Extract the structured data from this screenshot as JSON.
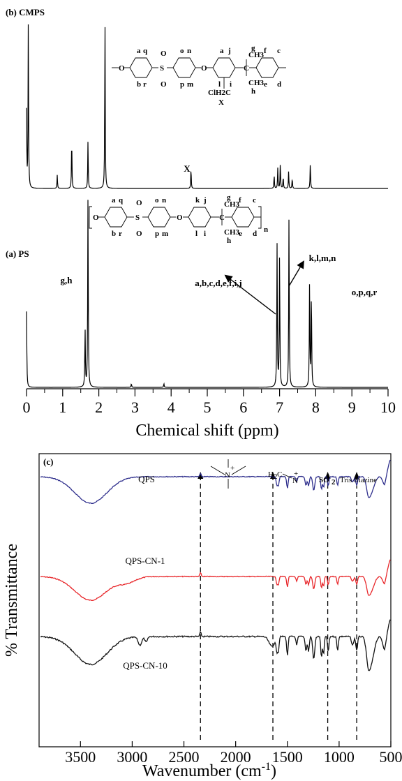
{
  "chart_data": [
    {
      "type": "line",
      "panel": "nmr",
      "xlabel": "Chemical shift (ppm)",
      "xlim": [
        0,
        10
      ],
      "x_ticks": [
        "0",
        "1",
        "2",
        "3",
        "4",
        "5",
        "6",
        "7",
        "8",
        "9",
        "10"
      ],
      "annotations": [
        "X",
        "g,h",
        "a,b,c,d,e,f,i,j",
        "k,l,m,n",
        "o,p,q,r"
      ],
      "series": [
        {
          "name": "(b) CMPS",
          "peaks": [
            {
              "ppm": 0.0,
              "height": 0.45
            },
            {
              "ppm": 0.05,
              "height": 1.0
            },
            {
              "ppm": 0.85,
              "height": 0.08
            },
            {
              "ppm": 1.25,
              "height": 0.3
            },
            {
              "ppm": 1.7,
              "height": 0.28
            },
            {
              "ppm": 2.17,
              "height": 1.0
            },
            {
              "ppm": 4.55,
              "height": 0.12
            },
            {
              "ppm": 6.85,
              "height": 0.08
            },
            {
              "ppm": 6.95,
              "height": 0.12
            },
            {
              "ppm": 7.02,
              "height": 0.15
            },
            {
              "ppm": 7.1,
              "height": 0.07
            },
            {
              "ppm": 7.25,
              "height": 0.1
            },
            {
              "ppm": 7.35,
              "height": 0.06
            },
            {
              "ppm": 7.85,
              "height": 0.15
            }
          ]
        },
        {
          "name": "(a) PS",
          "peaks": [
            {
              "ppm": 0.0,
              "height": 0.4
            },
            {
              "ppm": 1.62,
              "height": 0.3
            },
            {
              "ppm": 1.7,
              "height": 1.0
            },
            {
              "ppm": 2.9,
              "height": 0.02
            },
            {
              "ppm": 3.8,
              "height": 0.02
            },
            {
              "ppm": 6.93,
              "height": 0.75
            },
            {
              "ppm": 7.0,
              "height": 0.7
            },
            {
              "ppm": 7.26,
              "height": 0.9
            },
            {
              "ppm": 7.83,
              "height": 0.55
            },
            {
              "ppm": 7.88,
              "height": 0.5
            }
          ]
        }
      ],
      "structures": {
        "cmps": {
          "ring_letters": [
            "a",
            "q",
            "b",
            "r",
            "o",
            "n",
            "p",
            "m",
            "a",
            "j",
            "l",
            "i",
            "g",
            "f",
            "c",
            "h",
            "e",
            "d"
          ],
          "groups": [
            "S",
            "O",
            "O",
            "O",
            "ClH2C",
            "X",
            "CH3",
            "CH3",
            "C"
          ]
        },
        "ps": {
          "ring_letters": [
            "a",
            "q",
            "b",
            "r",
            "o",
            "n",
            "p",
            "m",
            "k",
            "j",
            "l",
            "i",
            "g",
            "f",
            "c",
            "h",
            "e",
            "d"
          ],
          "groups": [
            "O",
            "S",
            "O",
            "O",
            "O",
            "CH3",
            "CH3",
            "C"
          ],
          "repeat": "n"
        }
      }
    },
    {
      "type": "line",
      "panel": "ftir",
      "panel_label": "(c)",
      "xlabel": "Wavenumber (cm",
      "xlabel_sup": "-1",
      "xlabel_end": ")",
      "ylabel": "% Transmittance",
      "xlim": [
        3900,
        500
      ],
      "x_ticks": [
        "3500",
        "3000",
        "2500",
        "2000",
        "1500",
        "1000",
        "500"
      ],
      "reference_lines": [
        2340,
        1640,
        1110,
        830
      ],
      "band_labels": {
        "ammonium_top": "+",
        "ammonium_center": "N",
        "methylene_group": "H",
        "methylene_sub": "2",
        "methylene_c": "C",
        "methylene_n": "N",
        "methylene_plus": "+",
        "sulfonyl": "SO",
        "sulfonyl_sub": "2",
        "triazine": "Tris triazine"
      },
      "series": [
        {
          "name": "QPS",
          "color": "#2e2e8c"
        },
        {
          "name": "QPS-CN-1",
          "color": "#e8262a"
        },
        {
          "name": "QPS-CN-10",
          "color": "#111111"
        }
      ]
    }
  ]
}
